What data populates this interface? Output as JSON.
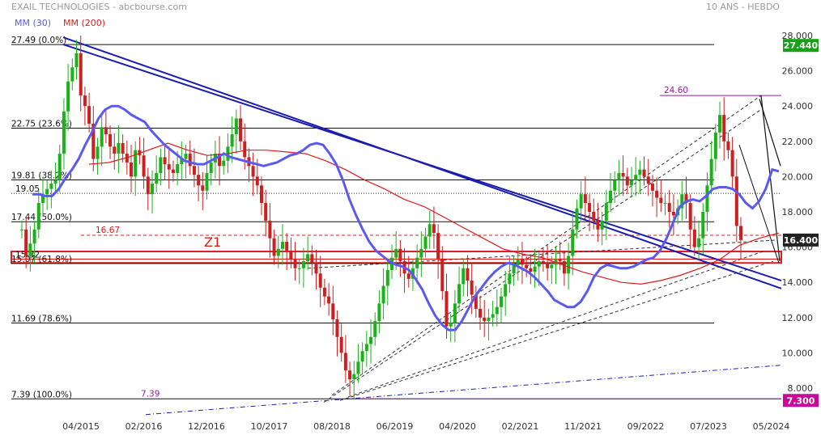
{
  "header": {
    "title": "EXAIL TECHNOLOGIES - abcbourse.com",
    "period": "10 ANS - HEBDO",
    "ma30_label": "MM (30)",
    "ma200_label": "MM (200)"
  },
  "colors": {
    "ma30": "#5a5af2",
    "ma200": "#e01b1b",
    "up": "#19b319",
    "down": "#cc1f1f",
    "trend": "#1c1cae",
    "last_price_bg": "#19a019",
    "low_bg": "#c80a9a",
    "zone": "#e01b1b",
    "purple": "#9a1a9a"
  },
  "chart_data": {
    "type": "candlestick",
    "ylim": [
      6.5,
      29.0
    ],
    "y_ticks": [
      "8.000",
      "10.000",
      "12.000",
      "14.000",
      "16.000",
      "18.000",
      "20.000",
      "22.000",
      "24.000",
      "26.000",
      "28.000"
    ],
    "x_ticks": [
      "04/2015",
      "02/2016",
      "12/2016",
      "10/2017",
      "08/2018",
      "06/2019",
      "04/2020",
      "02/2021",
      "11/2021",
      "09/2022",
      "07/2023",
      "05/2024"
    ],
    "last_price": "27.440",
    "current_price": "16.400",
    "low_price": "7.300",
    "fibonacci": [
      {
        "value": 27.49,
        "label": "27.49",
        "pct": "(0.0%)"
      },
      {
        "value": 22.75,
        "label": "22.75",
        "pct": "(23.6%)"
      },
      {
        "value": 19.81,
        "label": "19.81",
        "pct": "(38.2%)"
      },
      {
        "value": 17.44,
        "label": "17.44",
        "pct": "(50.0%)"
      },
      {
        "value": 15.07,
        "label": "15.07",
        "pct": "(61.8%)"
      },
      {
        "value": 11.69,
        "label": "11.69",
        "pct": "(78.6%)"
      },
      {
        "value": 7.39,
        "label": "7.39",
        "pct": "(100.0%)"
      }
    ],
    "levels": [
      {
        "value": 19.05,
        "label": "19.05"
      },
      {
        "value": 15.32,
        "label": "15.32"
      },
      {
        "value": 16.67,
        "label": "16.67"
      },
      {
        "value": 24.6,
        "label": "24.60"
      },
      {
        "value": 7.39,
        "label": "7.39"
      }
    ],
    "zone_label": "Z1",
    "zone_range": [
      15.1,
      15.75
    ],
    "closes": [
      17.0,
      15.5,
      16.2,
      17.0,
      18.5,
      19.0,
      19.3,
      19.6,
      19.8,
      21.3,
      23.7,
      25.4,
      26.2,
      27.0,
      24.6,
      24.0,
      23.0,
      21.0,
      21.7,
      22.8,
      22.4,
      21.7,
      21.3,
      21.9,
      21.3,
      20.8,
      20.0,
      21.5,
      21.2,
      20.0,
      19.0,
      19.6,
      20.2,
      21.1,
      20.7,
      20.4,
      20.2,
      20.7,
      21.0,
      21.3,
      20.6,
      20.1,
      19.5,
      19.2,
      20.2,
      20.8,
      21.3,
      20.6,
      20.9,
      21.7,
      22.4,
      23.3,
      22.0,
      21.1,
      20.6,
      20.0,
      19.5,
      18.5,
      17.5,
      16.5,
      15.5,
      15.9,
      16.3,
      15.8,
      15.3,
      14.8,
      14.8,
      15.2,
      15.6,
      15.1,
      14.5,
      13.7,
      13.2,
      12.8,
      11.9,
      10.9,
      10.0,
      9.0,
      8.5,
      8.8,
      9.5,
      10.1,
      10.5,
      10.9,
      11.8,
      12.8,
      13.8,
      14.7,
      15.4,
      15.9,
      15.2,
      14.5,
      14.2,
      14.8,
      15.4,
      15.9,
      16.6,
      17.3,
      16.8,
      15.3,
      13.5,
      11.5,
      11.7,
      12.8,
      13.9,
      14.8,
      14.1,
      13.3,
      12.5,
      12.0,
      11.8,
      12.0,
      12.2,
      12.6,
      13.2,
      13.9,
      14.5,
      15.0,
      15.3,
      15.0,
      14.8,
      14.6,
      14.9,
      15.2,
      15.1,
      14.8,
      15.0,
      15.3,
      15.2,
      14.5,
      15.5,
      17.0,
      18.2,
      19.0,
      18.5,
      18.0,
      17.5,
      17.0,
      17.5,
      18.5,
      19.2,
      19.8,
      20.2,
      20.0,
      19.5,
      19.8,
      20.1,
      20.4,
      20.0,
      19.6,
      19.2,
      18.8,
      18.5,
      18.5,
      18.0,
      17.8,
      18.2,
      19.0,
      18.5,
      17.0,
      16.0,
      16.5,
      18.0,
      19.5,
      21.0,
      22.5,
      23.5,
      22.0,
      21.5,
      20.0,
      17.2,
      16.4
    ],
    "ma30": [
      19.0,
      19.0,
      18.9,
      18.9,
      19.3,
      19.9,
      20.4,
      21.0,
      21.8,
      22.5,
      23.3,
      23.8,
      24.0,
      24.0,
      23.8,
      23.5,
      23.3,
      23.1,
      22.6,
      22.2,
      21.8,
      21.5,
      21.2,
      20.9,
      20.8,
      20.7,
      20.7,
      20.9,
      21.1,
      21.3,
      21.1,
      21.0,
      20.9,
      20.8,
      20.7,
      20.6,
      20.7,
      20.8,
      21.0,
      21.2,
      21.3,
      21.5,
      21.8,
      21.9,
      21.8,
      21.3,
      20.7,
      19.8,
      18.7,
      17.8,
      17.0,
      16.3,
      15.8,
      15.5,
      15.2,
      15.0,
      14.9,
      14.7,
      14.2,
      13.6,
      12.8,
      12.1,
      11.6,
      11.3,
      11.3,
      11.8,
      12.5,
      13.2,
      13.7,
      14.2,
      14.6,
      14.9,
      15.1,
      15.0,
      14.8,
      14.6,
      14.3,
      13.9,
      13.5,
      13.0,
      12.8,
      12.6,
      12.6,
      12.9,
      13.5,
      14.3,
      14.8,
      15.0,
      14.9,
      14.8,
      14.8,
      14.9,
      15.1,
      15.3,
      15.4,
      15.8,
      16.5,
      17.4,
      18.3,
      18.6,
      18.7,
      18.6,
      18.9,
      19.3,
      19.4,
      19.4,
      19.3,
      19.0,
      18.5,
      18.2,
      18.6,
      19.3,
      20.4,
      20.3
    ],
    "ma200": [
      20.7,
      20.8,
      21.1,
      21.5,
      21.9,
      21.5,
      21.2,
      21.3,
      21.5,
      21.5,
      21.4,
      21.3,
      20.9,
      20.4,
      19.8,
      19.3,
      18.7,
      18.3,
      17.7,
      17.1,
      16.5,
      15.9,
      15.6,
      15.4,
      15.0,
      14.6,
      14.3,
      14.0,
      13.9,
      14.1,
      14.4,
      14.8,
      15.3,
      16.1,
      16.5,
      16.8
    ]
  }
}
